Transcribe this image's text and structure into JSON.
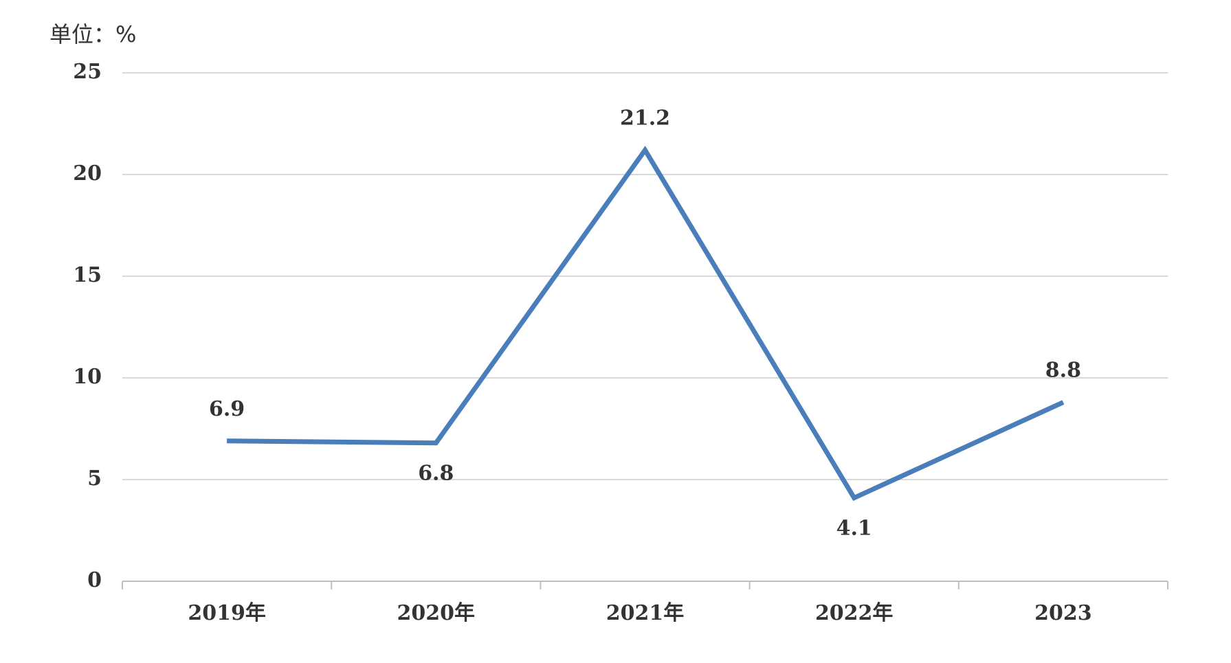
{
  "chart_data": {
    "type": "line",
    "unit_label": "单位：%",
    "categories": [
      "2019年",
      "2020年",
      "2021年",
      "2022年",
      "2023"
    ],
    "series": [
      {
        "color": "#4a7ebb",
        "values": [
          6.9,
          6.8,
          21.2,
          4.1,
          8.8
        ]
      }
    ],
    "ylim": [
      0,
      25
    ],
    "yticks": [
      0,
      5,
      10,
      15,
      20,
      25
    ],
    "grid": true
  }
}
